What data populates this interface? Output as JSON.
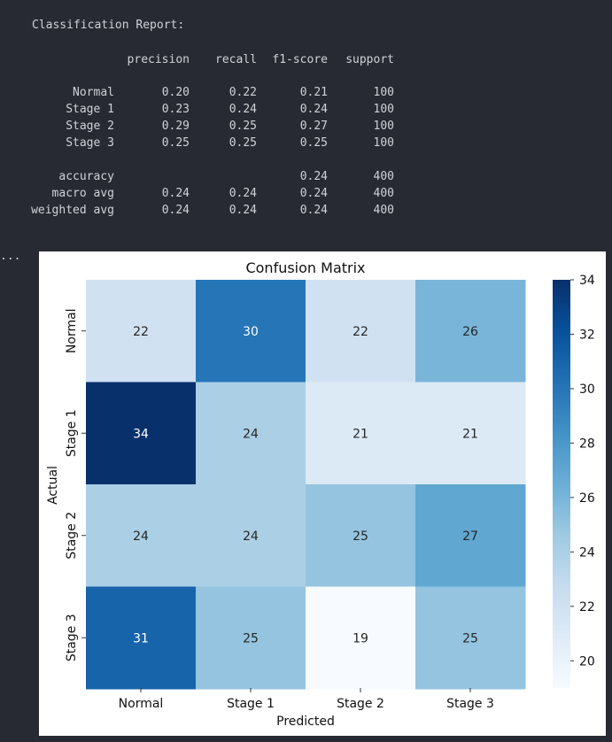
{
  "report": {
    "title": "Classification Report:",
    "headers": [
      "precision",
      "recall",
      "f1-score",
      "support"
    ],
    "rows": [
      {
        "label": "Normal",
        "values": [
          "0.20",
          "0.22",
          "0.21",
          "100"
        ]
      },
      {
        "label": "Stage 1",
        "values": [
          "0.23",
          "0.24",
          "0.24",
          "100"
        ]
      },
      {
        "label": "Stage 2",
        "values": [
          "0.29",
          "0.25",
          "0.27",
          "100"
        ]
      },
      {
        "label": "Stage 3",
        "values": [
          "0.25",
          "0.25",
          "0.25",
          "100"
        ]
      }
    ],
    "summary": [
      {
        "label": "accuracy",
        "values": [
          "",
          "",
          "0.24",
          "400"
        ]
      },
      {
        "label": "macro avg",
        "values": [
          "0.24",
          "0.24",
          "0.24",
          "400"
        ]
      },
      {
        "label": "weighted avg",
        "values": [
          "0.24",
          "0.24",
          "0.24",
          "400"
        ]
      }
    ]
  },
  "ellipsis": "...",
  "chart_data": {
    "type": "heatmap",
    "title": "Confusion Matrix",
    "xlabel": "Predicted",
    "ylabel": "Actual",
    "x_categories": [
      "Normal",
      "Stage 1",
      "Stage 2",
      "Stage 3"
    ],
    "y_categories": [
      "Normal",
      "Stage 1",
      "Stage 2",
      "Stage 3"
    ],
    "values": [
      [
        22,
        30,
        22,
        26
      ],
      [
        34,
        24,
        21,
        21
      ],
      [
        24,
        24,
        25,
        27
      ],
      [
        31,
        25,
        19,
        25
      ]
    ],
    "colormap": "Blues",
    "vmin": 19,
    "vmax": 34,
    "colorbar_ticks": [
      20,
      22,
      24,
      26,
      28,
      30,
      32,
      34
    ]
  }
}
